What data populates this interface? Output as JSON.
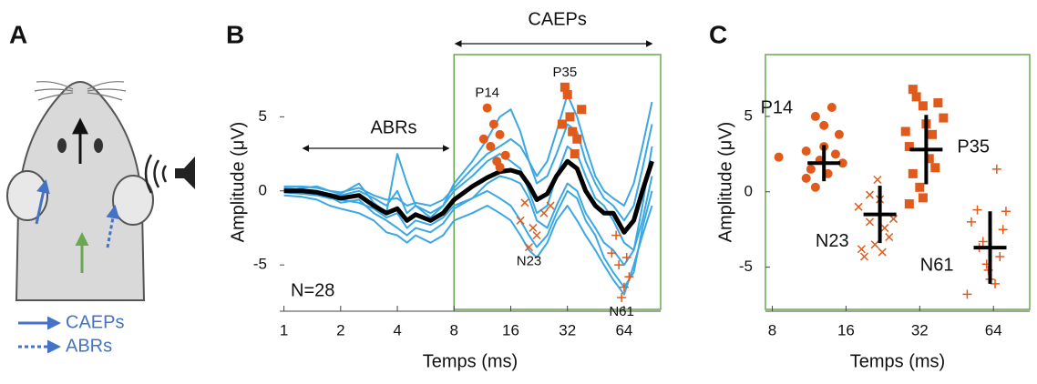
{
  "diagram": {
    "panel": "A",
    "legend": [
      "CAEPs",
      "ABRs"
    ]
  },
  "chart_data": [
    {
      "panel": "B",
      "type": "line",
      "xlabel": "Temps (ms)",
      "ylabel": "Amplitude (μV)",
      "x_scale": "log",
      "xlim": [
        0.95,
        100
      ],
      "ylim": [
        -8,
        9.2
      ],
      "xticks": [
        1,
        2,
        4,
        8,
        16,
        32,
        64
      ],
      "yticks": [
        -5,
        0,
        5
      ],
      "window_start": 8,
      "annotations": [
        "ABRs",
        "CAEPs",
        "N=28"
      ],
      "x": [
        1,
        1.25,
        1.5,
        1.75,
        2,
        2.5,
        3,
        3.5,
        4,
        4.5,
        5,
        6,
        7,
        8,
        10,
        12,
        14,
        16,
        18,
        20,
        22,
        25,
        28,
        32,
        36,
        40,
        45,
        50,
        56,
        64,
        72,
        80,
        90
      ],
      "series": [
        {
          "color": "#3ba7e3",
          "values": [
            0.2,
            0.1,
            0,
            -0.2,
            -0.3,
            0,
            -0.5,
            -1,
            0,
            -1.5,
            -1,
            -1.8,
            -1,
            0.5,
            2,
            3.5,
            5,
            5.5,
            4,
            2,
            1,
            2,
            4,
            6.5,
            5,
            3,
            1,
            0,
            -0.5,
            -1,
            0.5,
            3,
            6
          ]
        },
        {
          "color": "#3ba7e3",
          "values": [
            -0.3,
            -0.4,
            -0.6,
            -1,
            -1.2,
            -1.5,
            -2,
            -2.8,
            -3,
            -3.5,
            -3,
            -3.5,
            -3,
            -2,
            -1.5,
            -1,
            -1.5,
            -2,
            -3,
            -4,
            -4.5,
            -3.5,
            -2,
            -1,
            -2,
            -3,
            -4,
            -5,
            -6,
            -7,
            -5,
            -3,
            -1
          ]
        },
        {
          "color": "#3ba7e3",
          "values": [
            0,
            0.2,
            0.3,
            0,
            -0.2,
            0.5,
            -0.8,
            -1.5,
            2.5,
            0.5,
            -1,
            -1.5,
            -1,
            0,
            1,
            2,
            2.5,
            2,
            1.5,
            0,
            -1.5,
            -1,
            1,
            3,
            2.5,
            1,
            -0.5,
            -1,
            -2,
            -3.5,
            -4,
            -1,
            3
          ]
        },
        {
          "color": "#3ba7e3",
          "values": [
            0.1,
            0,
            -0.2,
            -0.4,
            -0.8,
            -0.6,
            -1.5,
            -2,
            -2.5,
            -3,
            -2.5,
            -2.8,
            -2.2,
            -1.2,
            -0.5,
            0.5,
            1,
            0.8,
            0.5,
            -0.5,
            -2,
            -2.5,
            -1,
            0.5,
            0,
            -1.5,
            -2.5,
            -3.5,
            -4,
            -5,
            -4,
            -2,
            1
          ]
        },
        {
          "color": "#3ba7e3",
          "values": [
            0.3,
            0.3,
            0.2,
            0,
            -0.1,
            0.2,
            -0.3,
            -0.6,
            -0.5,
            -1,
            -0.8,
            -1,
            -0.6,
            0.2,
            1.5,
            2.5,
            3,
            3.5,
            3,
            2,
            0.5,
            1,
            2.5,
            4.5,
            4,
            2,
            0.5,
            -0.5,
            -1,
            -2,
            -1,
            1.5,
            4.5
          ]
        },
        {
          "color": "#3ba7e3",
          "values": [
            -0.1,
            -0.2,
            -0.3,
            -0.5,
            -0.6,
            -0.8,
            -1.2,
            -1.8,
            -1.5,
            -2.5,
            -2,
            -2.3,
            -1.8,
            -1,
            -0.5,
            0,
            -0.5,
            -1,
            -2,
            -3,
            -3.8,
            -3,
            -1.5,
            0,
            -0.5,
            -2,
            -3,
            -4.5,
            -5.5,
            -6.5,
            -5.5,
            -2.5,
            0
          ]
        },
        {
          "color": "#000000",
          "values": [
            0,
            0,
            -0.1,
            -0.3,
            -0.5,
            -0.3,
            -1,
            -1.5,
            -1.2,
            -2,
            -1.6,
            -2,
            -1.5,
            -0.6,
            0.3,
            0.9,
            1.3,
            1.4,
            1.2,
            0.4,
            -0.6,
            -0.2,
            1,
            2,
            1.5,
            0,
            -1,
            -1.5,
            -1.5,
            -2.8,
            -2,
            0,
            2
          ]
        }
      ],
      "peaks": [
        {
          "name": "P14",
          "marker": "circle",
          "color": "#e05a1c",
          "x": [
            12,
            13,
            14,
            12.5,
            15,
            13.5,
            11.5,
            14
          ],
          "values": [
            5.6,
            4.5,
            3.8,
            3,
            2.4,
            2,
            3.5,
            1.6
          ]
        },
        {
          "name": "P35",
          "marker": "square",
          "color": "#e05a1c",
          "x": [
            31,
            32,
            33,
            30,
            34,
            36,
            35,
            38
          ],
          "values": [
            7,
            6.5,
            5,
            4.5,
            4,
            3.5,
            2.5,
            5.5
          ]
        },
        {
          "name": "N23",
          "marker": "x",
          "color": "#e05a1c",
          "x": [
            18,
            20,
            22,
            24,
            21,
            26,
            19
          ],
          "values": [
            -2,
            -3.8,
            -3,
            -1.5,
            -2.5,
            -1,
            -0.8
          ]
        },
        {
          "name": "N61",
          "marker": "plus",
          "color": "#e05a1c",
          "x": [
            55,
            60,
            64,
            62,
            58,
            68,
            66
          ],
          "values": [
            -4.2,
            -5,
            -6.5,
            -7.2,
            -3,
            -5.8,
            -4.5
          ]
        }
      ]
    },
    {
      "panel": "C",
      "type": "scatter",
      "xlabel": "Temps (ms)",
      "ylabel": "Amplitude (μV)",
      "x_scale": "log",
      "xlim": [
        7.5,
        90
      ],
      "ylim": [
        -7.8,
        9.1
      ],
      "xticks": [
        8,
        16,
        32,
        64
      ],
      "yticks": [
        -5,
        0,
        5
      ],
      "series": [
        {
          "marker": "circle",
          "color": "#e05a1c",
          "x": [
            8.5,
            12,
            13,
            14,
            15,
            11,
            12.5,
            13.5,
            11.5,
            14.5,
            12,
            15.5,
            13,
            11
          ],
          "values": [
            2.3,
            5,
            4.4,
            5.6,
            3.8,
            2.7,
            2.1,
            1.2,
            1.5,
            2.5,
            0.3,
            1.9,
            3,
            0.9
          ]
        },
        {
          "marker": "x",
          "color": "#e05a1c",
          "x": [
            18,
            20,
            21,
            19,
            22,
            23,
            24,
            20,
            25,
            18.5,
            22.5,
            21.5
          ],
          "values": [
            -1,
            -2,
            -3.5,
            -4.3,
            -0.5,
            -2.4,
            -3,
            -0.2,
            -1.8,
            -3.8,
            -4,
            0.8
          ]
        },
        {
          "marker": "square",
          "color": "#e05a1c",
          "x": [
            30,
            31,
            33,
            28,
            29,
            34,
            36,
            38,
            35,
            30,
            32,
            37,
            29,
            33,
            40
          ],
          "values": [
            6.8,
            6.3,
            5.7,
            4,
            3,
            4.5,
            3.8,
            5.9,
            2.2,
            1.2,
            0.3,
            1.6,
            -0.8,
            -0.4,
            4.9
          ]
        },
        {
          "marker": "plus",
          "color": "#e05a1c",
          "x": [
            52,
            55,
            58,
            60,
            62,
            65,
            70,
            68,
            56,
            50,
            72,
            66,
            61
          ],
          "values": [
            -2,
            -1.2,
            -3.3,
            -4.8,
            -5.8,
            -6.1,
            -2.5,
            -4.3,
            -3.7,
            -6.8,
            -1.3,
            1.5,
            -5.2
          ]
        }
      ],
      "means": [
        {
          "name": "P14",
          "x": 13,
          "y": 1.9,
          "yerr": 1.2,
          "color": "#000000"
        },
        {
          "name": "N23",
          "x": 22,
          "y": -1.5,
          "yerr": 1.9,
          "color": "#000000"
        },
        {
          "name": "P35",
          "x": 34,
          "y": 2.8,
          "yerr": 2.3,
          "color": "#000000"
        },
        {
          "name": "N61",
          "x": 62,
          "y": -3.7,
          "yerr": 2.4,
          "color": "#000000"
        }
      ]
    }
  ]
}
